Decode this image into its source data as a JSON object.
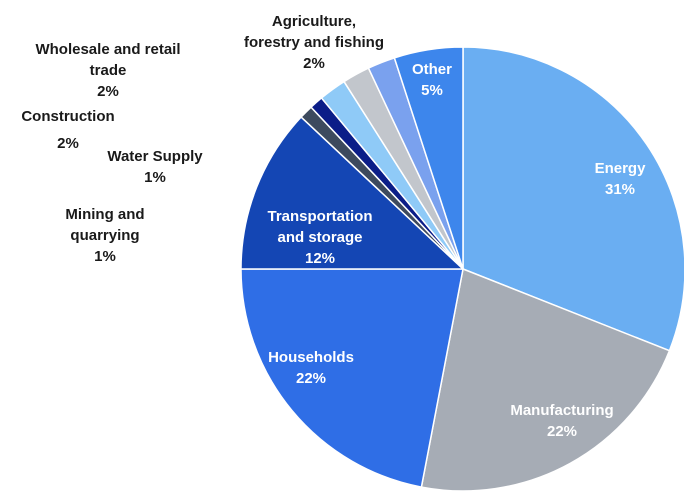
{
  "chart_data": {
    "type": "pie",
    "title": "",
    "slices": [
      {
        "name": "Energy",
        "value": 31,
        "label": "31%",
        "color": "#6aaef2",
        "inside": true
      },
      {
        "name": "Manufacturing",
        "value": 22,
        "label": "22%",
        "color": "#a6acb5",
        "inside": true
      },
      {
        "name": "Households",
        "value": 22,
        "label": "22%",
        "color": "#2f6ee6",
        "inside": true
      },
      {
        "name": "Transportation and storage",
        "value": 12,
        "label": "12%",
        "color": "#1446b4",
        "inside": true
      },
      {
        "name": "Mining and quarrying",
        "value": 1,
        "label": "1%",
        "color": "#3d4a5e",
        "inside": false
      },
      {
        "name": "Water Supply",
        "value": 1,
        "label": "1%",
        "color": "#0b1d88",
        "inside": false
      },
      {
        "name": "Construction",
        "value": 2,
        "label": "2%",
        "color": "#8fcaf7",
        "inside": false
      },
      {
        "name": "Wholesale and retail trade",
        "value": 2,
        "label": "2%",
        "color": "#c2c6cc",
        "inside": false
      },
      {
        "name": "Agriculture, forestry and fishing",
        "value": 2,
        "label": "2%",
        "color": "#7aa1ee",
        "inside": false
      },
      {
        "name": "Other",
        "value": 5,
        "label": "5%",
        "color": "#3d86ec",
        "inside": true
      }
    ],
    "legend": "none"
  }
}
